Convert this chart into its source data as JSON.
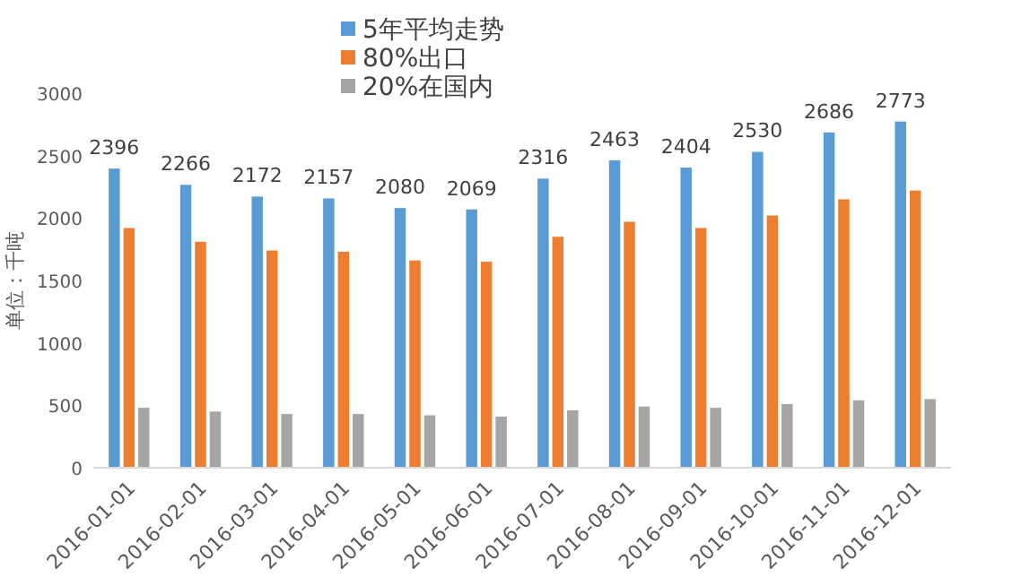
{
  "chart_data": {
    "type": "bar",
    "ylabel": "单位：千吨",
    "categories": [
      "2016-01-01",
      "2016-02-01",
      "2016-03-01",
      "2016-04-01",
      "2016-05-01",
      "2016-06-01",
      "2016-07-01",
      "2016-08-01",
      "2016-09-01",
      "2016-10-01",
      "2016-11-01",
      "2016-12-01"
    ],
    "series": [
      {
        "name": "5年平均走势",
        "color": "#5b9bd5",
        "values": [
          2396,
          2266,
          2172,
          2157,
          2080,
          2069,
          2316,
          2463,
          2404,
          2530,
          2686,
          2773
        ],
        "value_labels": [
          "2396",
          "2266",
          "2172",
          "2157",
          "2080",
          "2069",
          "2316",
          "2463",
          "2404",
          "2530",
          "2686",
          "2773"
        ]
      },
      {
        "name": "80%出口",
        "color": "#ed7d31",
        "values": [
          1920,
          1810,
          1740,
          1730,
          1660,
          1650,
          1850,
          1970,
          1920,
          2020,
          2150,
          2220
        ]
      },
      {
        "name": "20%在国内",
        "color": "#a5a5a5",
        "values": [
          480,
          450,
          430,
          430,
          420,
          410,
          460,
          490,
          480,
          510,
          540,
          550
        ]
      }
    ],
    "ylim": [
      0,
      3000
    ],
    "yticks": [
      0,
      500,
      1000,
      1500,
      2000,
      2500,
      3000
    ],
    "grid": false,
    "legend": "top"
  }
}
